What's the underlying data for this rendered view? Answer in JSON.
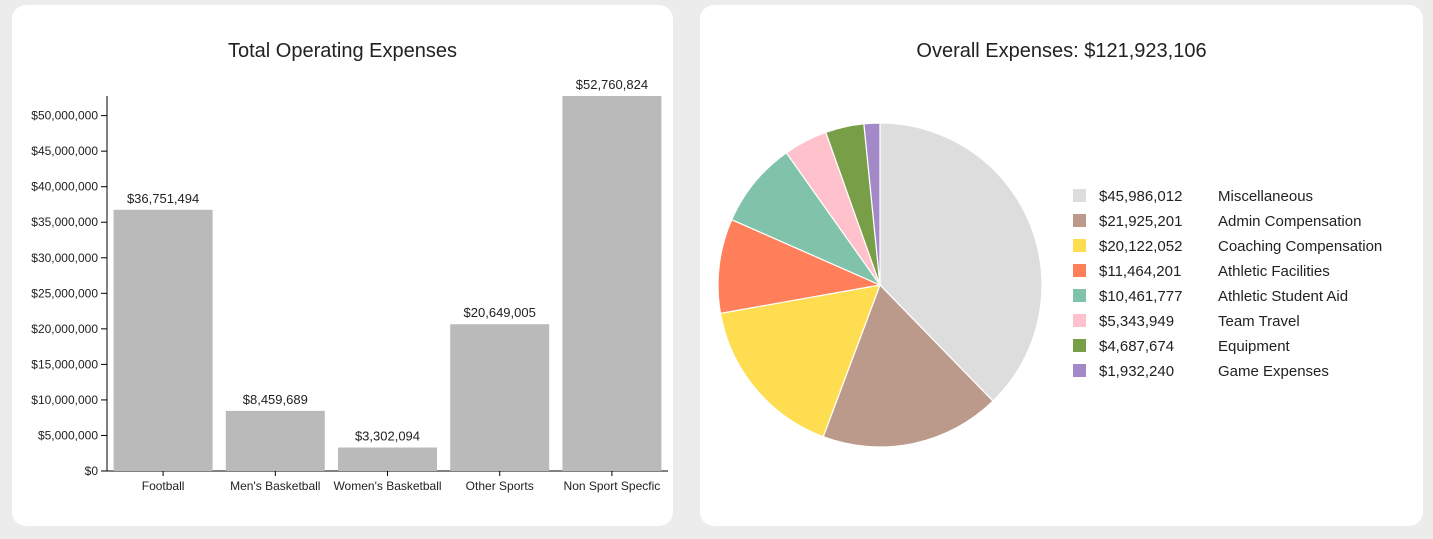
{
  "bar_panel": {
    "title": "Total Operating Expenses"
  },
  "pie_panel": {
    "title": "Overall Expenses: $121,923,106"
  },
  "chart_data": [
    {
      "type": "bar",
      "title": "Total Operating Expenses",
      "categories": [
        "Football",
        "Men's Basketball",
        "Women's Basketball",
        "Other Sports",
        "Non Sport Specfic"
      ],
      "values": [
        36751494,
        8459689,
        3302094,
        20649005,
        52760824
      ],
      "value_labels": [
        "$36,751,494",
        "$8,459,689",
        "$3,302,094",
        "$20,649,005",
        "$52,760,824"
      ],
      "ylim": [
        0,
        52760824
      ],
      "yticks": [
        0,
        5000000,
        10000000,
        15000000,
        20000000,
        25000000,
        30000000,
        35000000,
        40000000,
        45000000,
        50000000
      ],
      "ytick_labels": [
        "$0",
        "$5,000,000",
        "$10,000,000",
        "$15,000,000",
        "$20,000,000",
        "$25,000,000",
        "$30,000,000",
        "$35,000,000",
        "$40,000,000",
        "$45,000,000",
        "$50,000,000"
      ],
      "bar_color": "#bababa",
      "grid": false
    },
    {
      "type": "pie",
      "title": "Overall Expenses: $121,923,106",
      "labels": [
        "Miscellaneous",
        "Admin Compensation",
        "Coaching Compensation",
        "Athletic Facilities",
        "Athletic Student Aid",
        "Team Travel",
        "Equipment",
        "Game Expenses"
      ],
      "values": [
        45986012,
        21925201,
        20122052,
        11464201,
        10461777,
        5343949,
        4687674,
        1932240
      ],
      "value_labels": [
        "$45,986,012",
        "$21,925,201",
        "$20,122,052",
        "$11,464,201",
        "$10,461,777",
        "$5,343,949",
        "$4,687,674",
        "$1,932,240"
      ],
      "colors": [
        "#dddddd",
        "#bb9a8c",
        "#fedd50",
        "#ff7f5a",
        "#80c2aa",
        "#ffc1cc",
        "#789e47",
        "#a389c8"
      ],
      "legend_position": "right"
    }
  ]
}
